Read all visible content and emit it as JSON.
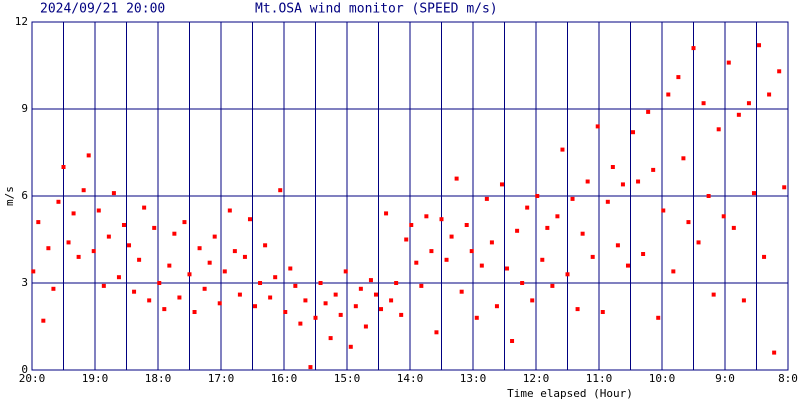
{
  "chart_data": {
    "type": "scatter",
    "timestamp": "2024/09/21 20:00",
    "title": "Mt.OSA wind monitor (SPEED m/s)",
    "y_label": "m/s",
    "x_label": "Time elapsed (Hour)",
    "color": "#ff0000",
    "grid_color": "#000080",
    "grid": true,
    "xlim": [
      0,
      12
    ],
    "ylim": [
      0,
      12
    ],
    "yticks": [
      0,
      3,
      6,
      9,
      12
    ],
    "xticks": [
      {
        "value": 0,
        "label": "20:0"
      },
      {
        "value": 1,
        "label": "19:0"
      },
      {
        "value": 2,
        "label": "18:0"
      },
      {
        "value": 3,
        "label": "17:0"
      },
      {
        "value": 4,
        "label": "16:0"
      },
      {
        "value": 5,
        "label": "15:0"
      },
      {
        "value": 6,
        "label": "14:0"
      },
      {
        "value": 7,
        "label": "13:0"
      },
      {
        "value": 8,
        "label": "12:0"
      },
      {
        "value": 9,
        "label": "11:0"
      },
      {
        "value": 10,
        "label": "10:0"
      },
      {
        "value": 11,
        "label": "9:0"
      },
      {
        "value": 12,
        "label": "8:0"
      }
    ],
    "xminorticks": [
      0.5,
      1.5,
      2.5,
      3.5,
      4.5,
      5.5,
      6.5,
      7.5,
      8.5,
      9.5,
      10.5,
      11.5
    ],
    "x": [
      0.02,
      0.1,
      0.18,
      0.26,
      0.34,
      0.42,
      0.5,
      0.58,
      0.66,
      0.74,
      0.82,
      0.9,
      0.98,
      1.06,
      1.14,
      1.22,
      1.3,
      1.38,
      1.46,
      1.54,
      1.62,
      1.7,
      1.78,
      1.86,
      1.94,
      2.02,
      2.1,
      2.18,
      2.26,
      2.34,
      2.42,
      2.5,
      2.58,
      2.66,
      2.74,
      2.82,
      2.9,
      2.98,
      3.06,
      3.14,
      3.22,
      3.3,
      3.38,
      3.46,
      3.54,
      3.62,
      3.7,
      3.78,
      3.86,
      3.94,
      4.02,
      4.1,
      4.18,
      4.26,
      4.34,
      4.42,
      4.5,
      4.58,
      4.66,
      4.74,
      4.82,
      4.9,
      4.98,
      5.06,
      5.14,
      5.22,
      5.3,
      5.38,
      5.46,
      5.54,
      5.62,
      5.7,
      5.78,
      5.86,
      5.94,
      6.02,
      6.1,
      6.18,
      6.26,
      6.34,
      6.42,
      6.5,
      6.58,
      6.66,
      6.74,
      6.82,
      6.9,
      6.98,
      7.06,
      7.14,
      7.22,
      7.3,
      7.38,
      7.46,
      7.54,
      7.62,
      7.7,
      7.78,
      7.86,
      7.94,
      8.02,
      8.1,
      8.18,
      8.26,
      8.34,
      8.42,
      8.5,
      8.58,
      8.66,
      8.74,
      8.82,
      8.9,
      8.98,
      9.06,
      9.14,
      9.22,
      9.3,
      9.38,
      9.46,
      9.54,
      9.62,
      9.7,
      9.78,
      9.86,
      9.94,
      10.02,
      10.1,
      10.18,
      10.26,
      10.34,
      10.42,
      10.5,
      10.58,
      10.66,
      10.74,
      10.82,
      10.9,
      10.98,
      11.06,
      11.14,
      11.22,
      11.3,
      11.38,
      11.46,
      11.54,
      11.62,
      11.7,
      11.78,
      11.86,
      11.94
    ],
    "values": [
      3.4,
      5.1,
      1.7,
      4.2,
      2.8,
      5.8,
      7.0,
      4.4,
      5.4,
      3.9,
      6.2,
      7.4,
      4.1,
      5.5,
      2.9,
      4.6,
      6.1,
      3.2,
      5.0,
      4.3,
      2.7,
      3.8,
      5.6,
      2.4,
      4.9,
      3.0,
      2.1,
      3.6,
      4.7,
      2.5,
      5.1,
      3.3,
      2.0,
      4.2,
      2.8,
      3.7,
      4.6,
      2.3,
      3.4,
      5.5,
      4.1,
      2.6,
      3.9,
      5.2,
      2.2,
      3.0,
      4.3,
      2.5,
      3.2,
      6.2,
      2.0,
      3.5,
      2.9,
      1.6,
      2.4,
      0.1,
      1.8,
      3.0,
      2.3,
      1.1,
      2.6,
      1.9,
      3.4,
      0.8,
      2.2,
      2.8,
      1.5,
      3.1,
      2.6,
      2.1,
      5.4,
      2.4,
      3.0,
      1.9,
      4.5,
      5.0,
      3.7,
      2.9,
      5.3,
      4.1,
      1.3,
      5.2,
      3.8,
      4.6,
      6.6,
      2.7,
      5.0,
      4.1,
      1.8,
      3.6,
      5.9,
      4.4,
      2.2,
      6.4,
      3.5,
      1.0,
      4.8,
      3.0,
      5.6,
      2.4,
      6.0,
      3.8,
      4.9,
      2.9,
      5.3,
      7.6,
      3.3,
      5.9,
      2.1,
      4.7,
      6.5,
      3.9,
      8.4,
      2.0,
      5.8,
      7.0,
      4.3,
      6.4,
      3.6,
      8.2,
      6.5,
      4.0,
      8.9,
      6.9,
      1.8,
      5.5,
      9.5,
      3.4,
      10.1,
      7.3,
      5.1,
      11.1,
      4.4,
      9.2,
      6.0,
      2.6,
      8.3,
      5.3,
      10.6,
      4.9,
      8.8,
      2.4,
      9.2,
      6.1,
      11.2,
      3.9,
      9.5,
      0.6,
      10.3,
      6.3
    ]
  }
}
